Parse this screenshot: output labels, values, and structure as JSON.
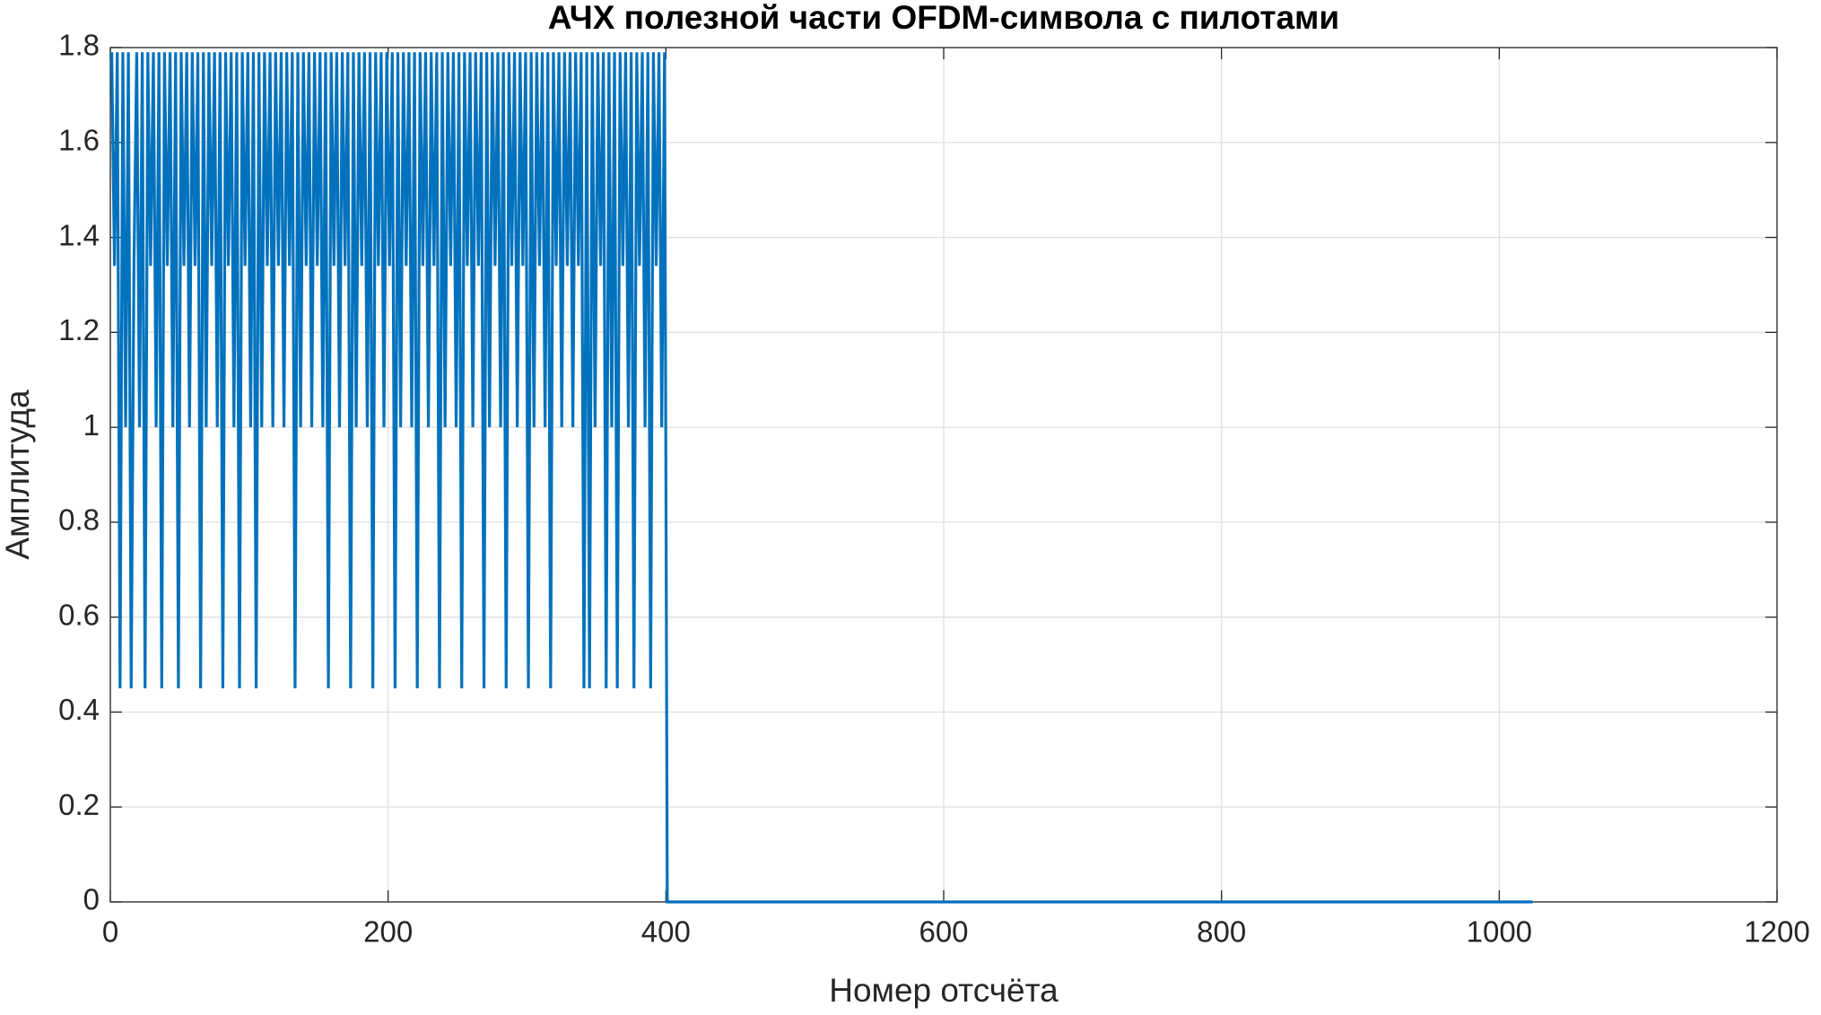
{
  "chart_data": {
    "type": "line",
    "title": "АЧХ полезной части OFDM-символа с пилотами",
    "x_label": "Номер отсчёта",
    "y_label": "Амплитуда",
    "color": "#0072bd",
    "grid": true,
    "xlim": [
      0,
      1200
    ],
    "xticks": [
      0,
      200,
      400,
      600,
      800,
      1000,
      1200
    ],
    "ylim": [
      0,
      1.8
    ],
    "yticks": [
      0,
      0.2,
      0.4,
      0.6,
      0.8,
      1,
      1.2,
      1.4,
      1.6,
      1.8
    ],
    "x": [
      1,
      3,
      5,
      7,
      9,
      11,
      13,
      15,
      17,
      19,
      21,
      23,
      25,
      27,
      29,
      31,
      33,
      35,
      37,
      39,
      41,
      43,
      45,
      47,
      49,
      51,
      53,
      55,
      57,
      59,
      61,
      63,
      65,
      67,
      69,
      71,
      73,
      75,
      77,
      79,
      81,
      83,
      85,
      87,
      89,
      91,
      93,
      95,
      97,
      99,
      101,
      103,
      105,
      107,
      109,
      111,
      113,
      115,
      117,
      119,
      121,
      123,
      125,
      127,
      129,
      131,
      133,
      135,
      137,
      139,
      141,
      143,
      145,
      147,
      149,
      151,
      153,
      155,
      157,
      159,
      161,
      163,
      165,
      167,
      169,
      171,
      173,
      175,
      177,
      179,
      181,
      183,
      185,
      187,
      189,
      191,
      193,
      195,
      197,
      199,
      201,
      203,
      205,
      207,
      209,
      211,
      213,
      215,
      217,
      219,
      221,
      223,
      225,
      227,
      229,
      231,
      233,
      235,
      237,
      239,
      241,
      243,
      245,
      247,
      249,
      251,
      253,
      255,
      257,
      259,
      261,
      263,
      265,
      267,
      269,
      271,
      273,
      275,
      277,
      279,
      281,
      283,
      285,
      287,
      289,
      291,
      293,
      295,
      297,
      299,
      301,
      303,
      305,
      307,
      309,
      311,
      313,
      315,
      317,
      319,
      321,
      323,
      325,
      327,
      329,
      331,
      333,
      335,
      337,
      339,
      341,
      343,
      345,
      347,
      349,
      351,
      353,
      355,
      357,
      359,
      361,
      363,
      365,
      367,
      369,
      371,
      373,
      375,
      377,
      379,
      381,
      383,
      385,
      387,
      389,
      391,
      393,
      395,
      397,
      399,
      401,
      1024
    ],
    "values": [
      1.79,
      1.34,
      1.79,
      0.45,
      1.79,
      1,
      1.79,
      0.45,
      1.34,
      1.79,
      1,
      1.79,
      0.45,
      1.79,
      1.34,
      1.79,
      1,
      1.79,
      0.45,
      1.79,
      1.34,
      1.79,
      1,
      1.79,
      0.45,
      1.79,
      1.34,
      1.79,
      1,
      1.79,
      1.34,
      1.79,
      0.45,
      1.79,
      1,
      1.79,
      1.34,
      1.79,
      1,
      1.79,
      0.45,
      1.79,
      1.34,
      1.79,
      1,
      1.79,
      0.45,
      1.79,
      1.34,
      1.79,
      1,
      1.79,
      0.45,
      1.79,
      1,
      1.79,
      1.34,
      1.79,
      1,
      1.79,
      1.34,
      1.79,
      1,
      1.79,
      1.34,
      1.79,
      0.45,
      1.79,
      1,
      1.79,
      1.34,
      1.79,
      1,
      1.79,
      1.34,
      1.79,
      1,
      1.79,
      0.45,
      1.79,
      1.34,
      1.79,
      1,
      1.79,
      1.34,
      1.79,
      0.45,
      1.79,
      1,
      1.79,
      1.34,
      1.79,
      1,
      1.79,
      0.45,
      1.79,
      1.34,
      1.79,
      1,
      1.79,
      1.34,
      1.79,
      0.45,
      1.79,
      1,
      1.79,
      1.34,
      1.79,
      1,
      1.79,
      0.45,
      1.79,
      1.34,
      1.79,
      1,
      1.79,
      1.34,
      1.79,
      0.45,
      1.79,
      1,
      1.79,
      1.34,
      1.79,
      1,
      1.79,
      0.45,
      1.79,
      1.34,
      1.79,
      1,
      1.79,
      1.34,
      1.79,
      0.45,
      1.79,
      1,
      1.79,
      1.34,
      1.79,
      1,
      1.79,
      0.45,
      1.79,
      1.34,
      1.79,
      1,
      1.79,
      1.34,
      1.79,
      0.45,
      1.79,
      1,
      1.79,
      1.34,
      1.79,
      1,
      1.79,
      0.45,
      1.79,
      1.34,
      1.79,
      1,
      1.79,
      1.34,
      1.79,
      1,
      1.79,
      1.34,
      1.79,
      0.45,
      1.79,
      0.45,
      1.79,
      1,
      1.79,
      1.34,
      1.79,
      0.45,
      1.79,
      1,
      1.79,
      0.45,
      1.79,
      1.34,
      1.79,
      1,
      1.79,
      0.45,
      1.79,
      1.34,
      1.79,
      1,
      1.79,
      0.45,
      1.79,
      1.34,
      1.79,
      1,
      1.79,
      0,
      0
    ]
  }
}
